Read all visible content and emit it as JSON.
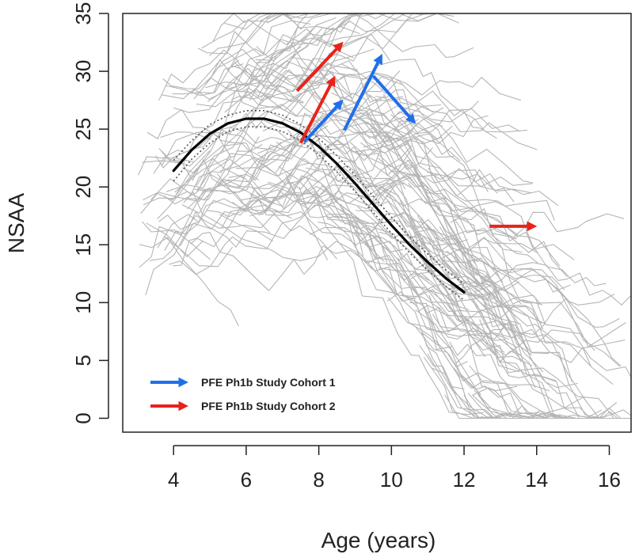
{
  "chart_data": {
    "type": "line",
    "title": "",
    "xlabel": "Age (years)",
    "ylabel": "NSAA",
    "xlim": [
      2.6,
      16.6
    ],
    "ylim": [
      -1.2,
      35
    ],
    "xticks": [
      "4",
      "6",
      "8",
      "10",
      "12",
      "14",
      "16"
    ],
    "yticks": [
      "0",
      "5",
      "10",
      "15",
      "20",
      "25",
      "30",
      "35"
    ],
    "grid": false,
    "colors": {
      "background_lines": "#b5b5b5",
      "mean_curve": "#000000",
      "confidence_band": "#555555",
      "cohort1": "#1f6feb",
      "cohort2": "#e8231a"
    },
    "mean_curve": {
      "x": [
        4,
        4.5,
        5,
        5.5,
        6,
        6.5,
        7,
        7.5,
        8,
        8.5,
        9,
        9.5,
        10,
        10.5,
        11,
        11.5,
        12
      ],
      "y": [
        21.4,
        23.2,
        24.6,
        25.5,
        25.9,
        25.9,
        25.5,
        24.7,
        23.5,
        22.0,
        20.3,
        18.5,
        16.7,
        15.0,
        13.5,
        12.1,
        10.9
      ]
    },
    "confidence_band": {
      "x": [
        4,
        4.5,
        5,
        5.5,
        6,
        6.5,
        7,
        7.5,
        8,
        8.5,
        9,
        9.5,
        10,
        10.5,
        11,
        11.5,
        12
      ],
      "upper": [
        22.3,
        24.0,
        25.4,
        26.2,
        26.6,
        26.6,
        26.2,
        25.4,
        24.2,
        22.7,
        21.0,
        19.2,
        17.4,
        15.7,
        14.2,
        12.8,
        11.6
      ],
      "lower": [
        20.5,
        22.4,
        23.8,
        24.8,
        25.2,
        25.2,
        24.8,
        24.0,
        22.8,
        21.3,
        19.6,
        17.8,
        16.0,
        14.3,
        12.8,
        11.4,
        10.2
      ]
    },
    "arrows": [
      {
        "series": "PFE Ph1b Study Cohort 2",
        "from": [
          7.4,
          28.3
        ],
        "to": [
          8.6,
          32.3
        ]
      },
      {
        "series": "PFE Ph1b Study Cohort 2",
        "from": [
          7.5,
          23.8
        ],
        "to": [
          8.4,
          29.3
        ]
      },
      {
        "series": "PFE Ph1b Study Cohort 1",
        "from": [
          7.6,
          23.9
        ],
        "to": [
          8.6,
          27.3
        ]
      },
      {
        "series": "PFE Ph1b Study Cohort 1",
        "from": [
          8.7,
          24.9
        ],
        "to": [
          9.7,
          31.2
        ]
      },
      {
        "series": "PFE Ph1b Study Cohort 1",
        "from": [
          9.5,
          29.6
        ],
        "to": [
          10.6,
          25.7
        ]
      },
      {
        "series": "PFE Ph1b Study Cohort 2",
        "from": [
          12.7,
          16.6
        ],
        "to": [
          13.9,
          16.6
        ]
      }
    ],
    "legend": {
      "position": "bottom-left",
      "entries": [
        {
          "label": "PFE Ph1b Study Cohort 1",
          "color": "#1f6feb"
        },
        {
          "label": "PFE Ph1b Study Cohort 2",
          "color": "#e8231a"
        }
      ]
    }
  }
}
